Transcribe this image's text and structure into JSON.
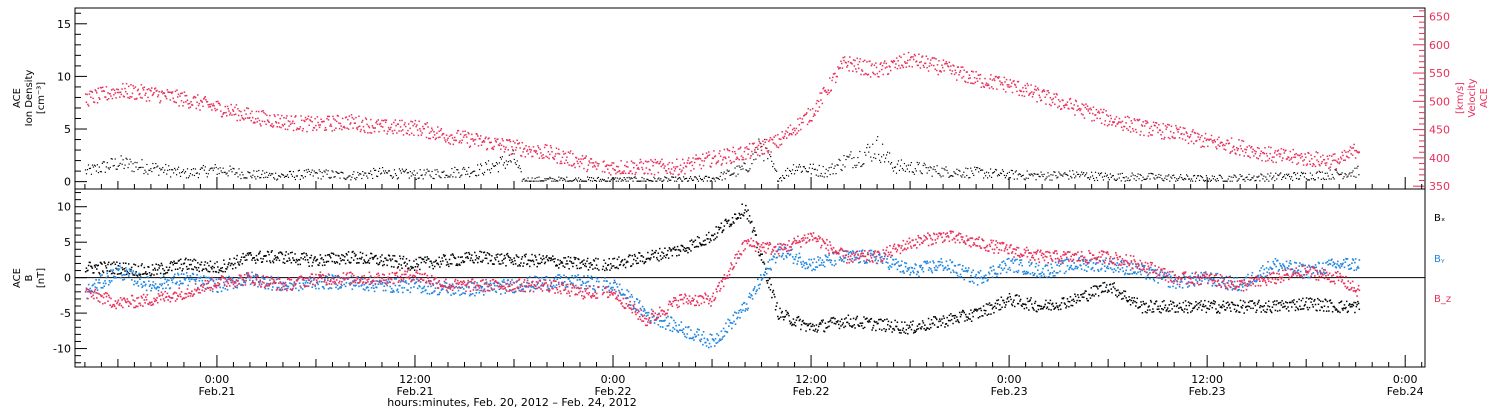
{
  "figure": {
    "xlabel": "hours:minutes, Feb. 20, 2012 – Feb. 24, 2012",
    "x_ticks": [
      {
        "time": "0:00",
        "date": "Feb.21",
        "hour": 8
      },
      {
        "time": "12:00",
        "date": "Feb.21",
        "hour": 20
      },
      {
        "time": "0:00",
        "date": "Feb.22",
        "hour": 32
      },
      {
        "time": "12:00",
        "date": "Feb.22",
        "hour": 44
      },
      {
        "time": "0:00",
        "date": "Feb.23",
        "hour": 56
      },
      {
        "time": "12:00",
        "date": "Feb.23",
        "hour": 68
      },
      {
        "time": "0:00",
        "date": "Feb.24",
        "hour": 80
      }
    ],
    "xlim": [
      -0.6,
      81.2
    ],
    "colors": {
      "black": "#000000",
      "pink": "#e8305a",
      "blue": "#1f86e0"
    }
  },
  "chart_data": [
    {
      "type": "scatter",
      "panel": "top",
      "ylabel_left": [
        "ACE",
        "Ion Density",
        "[cm⁻³]"
      ],
      "ylabel_right": [
        "ACE",
        "Velocity",
        "[km/s]"
      ],
      "y_left_ticks": [
        0,
        5,
        10,
        15
      ],
      "y_left_lim": [
        -0.7,
        16.5
      ],
      "y_right_ticks": [
        350,
        400,
        450,
        500,
        550,
        600,
        650
      ],
      "y_right_lim": [
        345,
        665
      ],
      "series": [
        {
          "name": "",
          "axis": "left",
          "color": "#000000",
          "x": [
            0,
            2,
            4,
            6,
            8,
            10,
            12,
            14,
            16,
            18,
            20,
            22,
            24,
            26,
            26.5,
            28,
            30,
            31,
            32,
            34,
            36,
            38,
            40,
            41,
            42,
            43,
            44,
            45,
            46,
            47,
            48,
            49,
            50,
            52,
            54,
            56,
            58,
            60,
            62,
            64,
            66,
            68,
            70,
            72,
            74,
            76,
            77.2
          ],
          "y": [
            1.0,
            1.8,
            1.4,
            0.8,
            1.2,
            0.7,
            0.6,
            0.8,
            0.6,
            0.9,
            0.7,
            0.9,
            1.2,
            2.2,
            0.2,
            0.2,
            0.2,
            0.2,
            0.2,
            0.2,
            0.2,
            0.3,
            1.3,
            3.5,
            0.3,
            1.5,
            1.2,
            1.0,
            2.0,
            2.5,
            3.3,
            1.5,
            1.4,
            1.0,
            0.9,
            0.7,
            0.6,
            0.7,
            0.5,
            0.5,
            0.4,
            0.3,
            0.4,
            0.5,
            0.6,
            0.8,
            1.0
          ]
        },
        {
          "name": "",
          "axis": "right",
          "color": "#e8305a",
          "x": [
            0,
            2,
            4,
            6,
            8,
            10,
            12,
            14,
            16,
            18,
            20,
            22,
            24,
            26,
            28,
            30,
            31,
            32,
            34,
            36,
            38,
            40,
            42,
            44,
            46,
            48,
            50,
            52,
            54,
            56,
            58,
            60,
            62,
            64,
            66,
            68,
            70,
            72,
            74,
            76,
            77.2
          ],
          "y": [
            505,
            520,
            515,
            505,
            490,
            475,
            465,
            460,
            465,
            455,
            455,
            440,
            430,
            420,
            410,
            395,
            385,
            385,
            385,
            385,
            400,
            410,
            430,
            480,
            570,
            555,
            575,
            560,
            540,
            530,
            510,
            490,
            470,
            455,
            445,
            430,
            420,
            405,
            400,
            395,
            420
          ]
        }
      ]
    },
    {
      "type": "scatter",
      "panel": "bottom",
      "ylabel_left": [
        "ACE",
        "B",
        "[nT]"
      ],
      "y_ticks": [
        -10,
        -5,
        0,
        5,
        10
      ],
      "ylim": [
        -12.6,
        12.5
      ],
      "legend": [
        "Bₓ",
        "Bᵧ",
        "B_z"
      ],
      "series": [
        {
          "name": "Bₓ",
          "color": "#000000",
          "x": [
            0,
            2,
            4,
            6,
            8,
            10,
            12,
            14,
            16,
            18,
            20,
            22,
            24,
            26,
            28,
            30,
            32,
            34,
            36,
            38,
            40,
            42,
            44,
            46,
            48,
            50,
            52,
            54,
            56,
            58,
            60,
            62,
            64,
            66,
            68,
            70,
            72,
            74,
            76,
            77.2
          ],
          "y": [
            1.5,
            1.5,
            1.0,
            2.0,
            1.5,
            3.0,
            3.0,
            2.5,
            3.0,
            2.5,
            2.0,
            2.5,
            3.0,
            2.5,
            2.5,
            2.0,
            2.0,
            3.0,
            4.0,
            6.0,
            10.0,
            -5.0,
            -7.0,
            -6.0,
            -6.5,
            -7.0,
            -6.0,
            -5.0,
            -3.0,
            -4.0,
            -3.0,
            -1.0,
            -4.0,
            -4.0,
            -4.0,
            -4.0,
            -4.0,
            -3.5,
            -4.0,
            -4.0
          ]
        },
        {
          "name": "Bᵧ",
          "color": "#1f86e0",
          "x": [
            0,
            2,
            4,
            6,
            8,
            10,
            12,
            14,
            16,
            18,
            20,
            22,
            24,
            26,
            28,
            30,
            32,
            34,
            36,
            38,
            40,
            42,
            44,
            46,
            48,
            50,
            52,
            54,
            56,
            58,
            60,
            62,
            64,
            66,
            68,
            70,
            72,
            74,
            76,
            77.2
          ],
          "y": [
            -2.0,
            1.0,
            -1.0,
            0.0,
            -1.0,
            0.0,
            -1.0,
            -0.5,
            -0.5,
            -1.0,
            -1.0,
            -1.5,
            -1.5,
            -1.0,
            -0.5,
            -0.5,
            -1.0,
            -5.0,
            -7.0,
            -9.0,
            -4.0,
            4.0,
            2.0,
            3.0,
            3.0,
            1.0,
            2.0,
            0.0,
            2.0,
            1.0,
            2.0,
            2.0,
            1.0,
            -0.5,
            0.0,
            -1.0,
            2.0,
            1.0,
            2.0,
            2.0
          ]
        },
        {
          "name": "B_z",
          "color": "#e8305a",
          "x": [
            0,
            2,
            4,
            6,
            8,
            10,
            12,
            14,
            16,
            18,
            20,
            22,
            24,
            26,
            28,
            30,
            32,
            34,
            36,
            38,
            40,
            42,
            44,
            46,
            48,
            50,
            52,
            54,
            56,
            58,
            60,
            62,
            64,
            66,
            68,
            70,
            72,
            74,
            76,
            77.2
          ],
          "y": [
            -2.0,
            -3.5,
            -3.0,
            -2.0,
            -0.5,
            0.0,
            -1.0,
            0.0,
            0.0,
            0.0,
            0.5,
            -1.0,
            -1.0,
            -1.0,
            -1.0,
            -2.0,
            -2.0,
            -6.0,
            -3.0,
            -3.0,
            5.0,
            4.0,
            6.0,
            3.0,
            3.0,
            5.0,
            6.0,
            5.0,
            4.0,
            3.0,
            3.0,
            3.0,
            2.0,
            0.0,
            0.0,
            -1.0,
            0.0,
            1.0,
            0.0,
            -2.0
          ]
        }
      ]
    }
  ]
}
